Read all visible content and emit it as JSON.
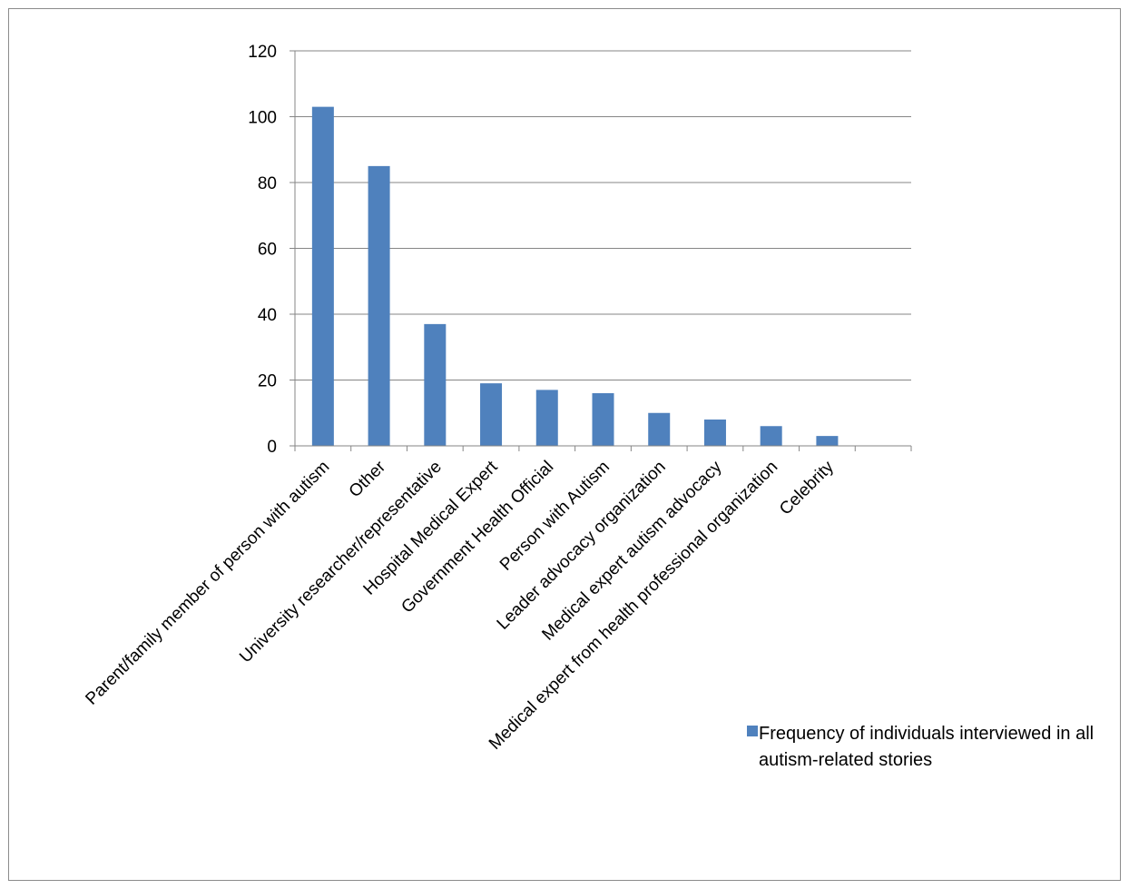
{
  "chart_data": {
    "type": "bar",
    "categories": [
      "Parent/family member of person with autism",
      "Other",
      "University researcher/representative",
      "Hospital Medical Expert",
      "Government Health Official",
      "Person with Autism",
      "Leader advocacy organization",
      "Medical expert autism advocacy",
      "Medical expert from health professional organization",
      "Celebrity",
      ""
    ],
    "series": [
      {
        "name": "Frequency of individuals interviewed in all autism-related stories",
        "values": [
          103,
          85,
          37,
          19,
          17,
          16,
          10,
          8,
          6,
          3,
          null
        ],
        "color": "#4f81bd"
      }
    ],
    "y_ticks": [
      "0",
      "20",
      "40",
      "60",
      "80",
      "100",
      "120"
    ],
    "ylim": [
      0,
      120
    ],
    "title": "",
    "xlabel": "",
    "ylabel": "",
    "grid": "horizontal",
    "legend_position": "bottom-right",
    "colors": {
      "bar": "#4f81bd",
      "grid": "#868686",
      "axis": "#868686"
    }
  }
}
